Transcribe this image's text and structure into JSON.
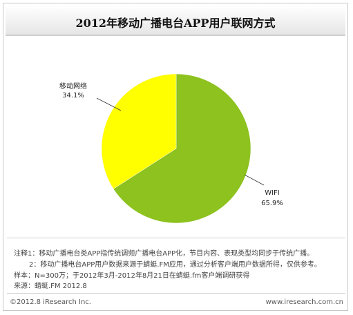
{
  "chart_data": {
    "type": "pie",
    "title": "2012年移动广播电台APP用户联网方式",
    "slices": [
      {
        "label": "WIFI",
        "value": 65.9,
        "display": "65.9%",
        "color": "#8dc21f"
      },
      {
        "label": "移动网络",
        "value": 34.1,
        "display": "34.1%",
        "color": "#ffff00"
      }
    ]
  },
  "notes": [
    "注释1：移动广播电台类APP指传统调频广播电台APP化，节目内容、表现类型均同步于传统广播。",
    "2：移动广播电台APP用户数据来源于蜻蜓.FM应用，通过分析客户端用户数据所得，仅供参考。",
    "样本：N=300万；于2012年3月-2012年8月21日在蜻蜓.fm客户端调研获得",
    "来源：蜻蜓.FM  2012.8"
  ],
  "footer": {
    "left": "©2012.8 iResearch Inc.",
    "right": "www.iresearch.com.cn"
  }
}
